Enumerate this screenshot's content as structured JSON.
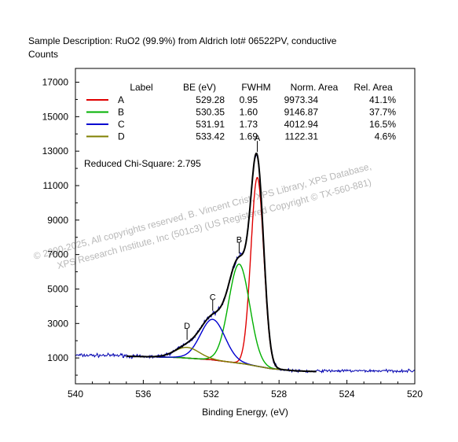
{
  "header": {
    "description": "Sample Description:  RuO2 (99.9%) from Aldrich lot# 06522PV, conductive",
    "ylabel": "Counts"
  },
  "watermark": {
    "line1": "© 2000-2025,  All copyrights reserved,   B. Vincent Crist,  XPS Library, XPS Database,",
    "line2": "XPS Research Institute, Inc (501c3)   (US Registered Copyright © TX-560-881)"
  },
  "chi_square": "Reduced Chi-Square: 2.795",
  "colors": {
    "A": "#e00000",
    "B": "#00b000",
    "C": "#0000d0",
    "D": "#808000",
    "raw": "#0000b0",
    "envelope": "#000000",
    "background": "#000000"
  },
  "chart_data": {
    "type": "line",
    "title": "",
    "xlabel": "Binding Energy, (eV)",
    "ylabel": "Counts",
    "xlim": [
      540,
      520
    ],
    "ylim": [
      -500,
      17800
    ],
    "x_reversed": true,
    "x_ticks": [
      540,
      536,
      532,
      528,
      524,
      520
    ],
    "y_ticks": [
      1000,
      3000,
      5000,
      7000,
      9000,
      11000,
      13000,
      15000,
      17000
    ],
    "legend": {
      "headers": [
        "Label",
        "BE (eV)",
        "FWHM",
        "Norm. Area",
        "Rel. Area"
      ],
      "rows": [
        {
          "label": "A",
          "be": "529.28",
          "fwhm": "0.95",
          "norm_area": "9973.34",
          "rel_area": "41.1%"
        },
        {
          "label": "B",
          "be": "530.35",
          "fwhm": "1.60",
          "norm_area": "9146.87",
          "rel_area": "37.7%"
        },
        {
          "label": "C",
          "be": "531.91",
          "fwhm": "1.73",
          "norm_area": "4012.94",
          "rel_area": "16.5%"
        },
        {
          "label": "D",
          "be": "533.42",
          "fwhm": "1.69",
          "norm_area": "1122.31",
          "rel_area": "4.6%"
        }
      ]
    },
    "background": {
      "x": [
        537.0,
        534.0,
        532.0,
        530.0,
        528.5,
        527.0,
        525.8
      ],
      "y": [
        1100,
        1030,
        900,
        650,
        380,
        250,
        210
      ]
    },
    "fit_range": [
      537.0,
      525.8
    ],
    "series": [
      {
        "name": "A",
        "center": 529.28,
        "height": 10950,
        "sigma": 0.38
      },
      {
        "name": "B",
        "center": 530.35,
        "height": 5750,
        "sigma": 0.62
      },
      {
        "name": "C",
        "center": 531.91,
        "height": 2350,
        "sigma": 0.72
      },
      {
        "name": "D",
        "center": 533.42,
        "height": 620,
        "sigma": 0.72
      }
    ],
    "raw_data": {
      "x_range": [
        540,
        520
      ],
      "baseline_high_be": 1150,
      "baseline_low_be": 250
    }
  }
}
